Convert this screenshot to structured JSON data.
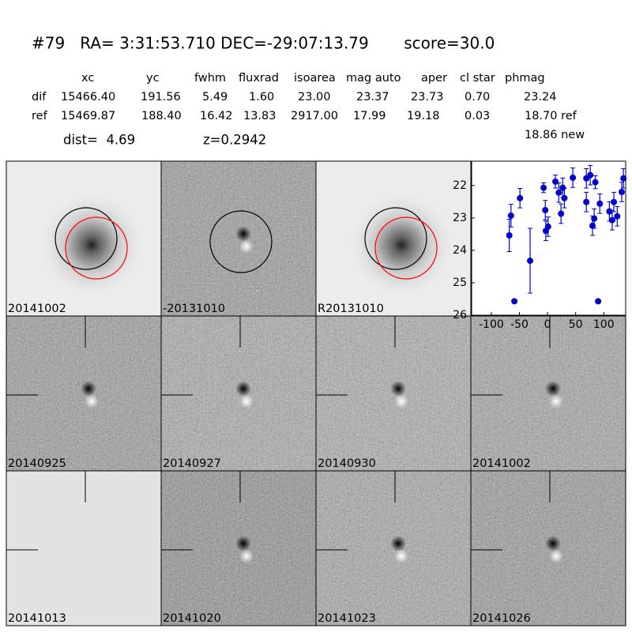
{
  "header": {
    "title": "#79   RA= 3:31:53.710 DEC=-29:07:13.79       score=30.0"
  },
  "table": {
    "columns": [
      "xc",
      "yc",
      "fwhm",
      "fluxrad",
      "isoarea",
      "mag auto",
      "aper",
      "cl star",
      "phmag"
    ],
    "rows": [
      [
        "dif",
        "15466.40",
        "191.56",
        "5.49",
        "1.60",
        "23.00",
        "23.37",
        "23.73",
        "0.70",
        "23.24"
      ],
      [
        "ref",
        "15469.87",
        "188.40",
        "16.42",
        "13.83",
        "2917.00",
        "17.99",
        "19.18",
        "0.03",
        "18.70 ref"
      ]
    ],
    "extra": "18.86 new"
  },
  "info": {
    "dist": "dist=  4.69",
    "z": "z=0.2942"
  },
  "tiles": [
    {
      "label": "20141002"
    },
    {
      "label": "-20131010"
    },
    {
      "label": "R20131010"
    },
    {
      "label": "20140925"
    },
    {
      "label": "20140927"
    },
    {
      "label": "20140930"
    },
    {
      "label": "20141002",
      "color": "#ff0000"
    },
    {
      "label": "20141013"
    },
    {
      "label": "20141020"
    },
    {
      "label": "20141023"
    },
    {
      "label": "20141026"
    }
  ],
  "chart_data": {
    "type": "scatter",
    "color": "#0000cc",
    "xlim": [
      -135,
      139
    ],
    "ylim": [
      26,
      21.25
    ],
    "xticks": [
      -100,
      -50,
      0,
      50,
      100
    ],
    "yticks": [
      22,
      23,
      24,
      25,
      26
    ],
    "series": [
      {
        "name": "phmag",
        "x": [
          -68,
          -65,
          -59,
          -49,
          -31,
          -7,
          -4,
          -3,
          1,
          14,
          20,
          24,
          27,
          30,
          45,
          69,
          69,
          76,
          80,
          83,
          85,
          90,
          93,
          110,
          115,
          118,
          124,
          132,
          135
        ],
        "values": [
          23.54,
          22.93,
          25.57,
          22.39,
          24.32,
          22.07,
          22.76,
          23.4,
          23.27,
          21.88,
          22.22,
          22.87,
          22.07,
          22.39,
          21.76,
          21.78,
          22.51,
          21.68,
          23.24,
          23.02,
          21.9,
          25.57,
          22.56,
          22.8,
          23.07,
          22.51,
          22.95,
          22.2,
          21.78
        ],
        "errors": [
          0.5,
          0.35,
          null,
          0.3,
          1.0,
          0.15,
          0.3,
          0.3,
          0.3,
          0.2,
          0.3,
          0.3,
          0.3,
          0.3,
          0.3,
          0.3,
          0.3,
          0.3,
          0.3,
          0.3,
          0.2,
          null,
          0.3,
          0.3,
          0.3,
          0.3,
          0.3,
          0.3,
          0.3
        ]
      }
    ]
  }
}
